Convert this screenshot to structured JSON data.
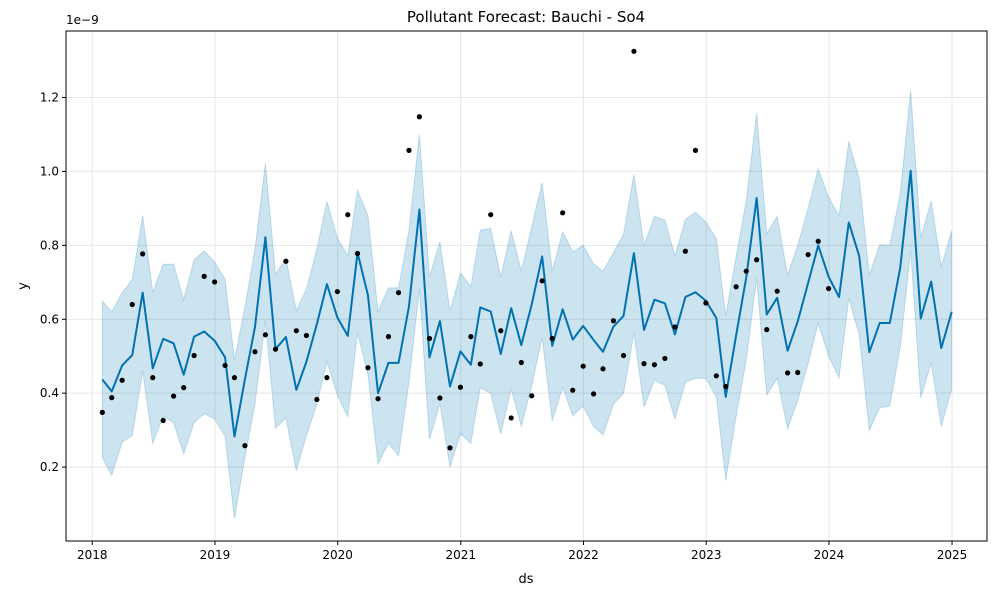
{
  "chart_data": {
    "type": "line",
    "title": "Pollutant Forecast: Bauchi - So4",
    "xlabel": "ds",
    "ylabel": "y",
    "y_scale_label": "1e−9",
    "x_ticks": [
      "2018",
      "2019",
      "2020",
      "2021",
      "2022",
      "2023",
      "2024",
      "2025"
    ],
    "y_ticks": [
      "0.2",
      "0.4",
      "0.6",
      "0.8",
      "1.0",
      "1.2"
    ],
    "xlim": [
      "2017-10-15",
      "2025-04-15"
    ],
    "ylim": [
      0.0,
      1.38
    ],
    "grid": true,
    "colors": {
      "forecast_line": "#0072B2",
      "interval_fill": "#0072B2",
      "observed": "#000000",
      "grid": "#e6e6e6"
    },
    "forecast": {
      "x": [
        "2018-01-31",
        "2018-02-28",
        "2018-03-31",
        "2018-04-30",
        "2018-05-31",
        "2018-06-30",
        "2018-07-31",
        "2018-08-31",
        "2018-09-30",
        "2018-10-31",
        "2018-11-30",
        "2018-12-31",
        "2019-01-31",
        "2019-02-28",
        "2019-03-31",
        "2019-04-30",
        "2019-05-31",
        "2019-06-30",
        "2019-07-31",
        "2019-08-31",
        "2019-09-30",
        "2019-10-31",
        "2019-11-30",
        "2019-12-31",
        "2020-01-31",
        "2020-02-29",
        "2020-03-31",
        "2020-04-30",
        "2020-05-31",
        "2020-06-30",
        "2020-07-31",
        "2020-08-31",
        "2020-09-30",
        "2020-10-31",
        "2020-11-30",
        "2020-12-31",
        "2021-01-31",
        "2021-02-28",
        "2021-03-31",
        "2021-04-30",
        "2021-05-31",
        "2021-06-30",
        "2021-07-31",
        "2021-08-31",
        "2021-09-30",
        "2021-10-31",
        "2021-11-30",
        "2021-12-31",
        "2022-01-31",
        "2022-02-28",
        "2022-03-31",
        "2022-04-30",
        "2022-05-31",
        "2022-06-30",
        "2022-07-31",
        "2022-08-31",
        "2022-09-30",
        "2022-10-31",
        "2022-11-30",
        "2022-12-31",
        "2023-01-31",
        "2023-02-28",
        "2023-03-31",
        "2023-04-30",
        "2023-05-31",
        "2023-06-30",
        "2023-07-31",
        "2023-08-31",
        "2023-09-30",
        "2023-10-31",
        "2023-11-30",
        "2023-12-31",
        "2024-01-31",
        "2024-02-29",
        "2024-03-31",
        "2024-04-30",
        "2024-05-31",
        "2024-06-30",
        "2024-07-31",
        "2024-08-31",
        "2024-09-30",
        "2024-10-31",
        "2024-11-30",
        "2024-12-31"
      ],
      "yhat": [
        0.437,
        0.405,
        0.475,
        0.503,
        0.672,
        0.467,
        0.547,
        0.535,
        0.45,
        0.553,
        0.567,
        0.542,
        0.497,
        0.283,
        0.437,
        0.579,
        0.822,
        0.519,
        0.552,
        0.409,
        0.485,
        0.587,
        0.695,
        0.605,
        0.555,
        0.78,
        0.665,
        0.4,
        0.482,
        0.482,
        0.635,
        0.897,
        0.497,
        0.595,
        0.418,
        0.513,
        0.477,
        0.632,
        0.621,
        0.506,
        0.63,
        0.53,
        0.64,
        0.77,
        0.528,
        0.627,
        0.545,
        0.582,
        0.544,
        0.512,
        0.58,
        0.609,
        0.779,
        0.571,
        0.653,
        0.643,
        0.559,
        0.66,
        0.673,
        0.65,
        0.603,
        0.39,
        0.557,
        0.713,
        0.928,
        0.613,
        0.658,
        0.515,
        0.594,
        0.698,
        0.8,
        0.715,
        0.66,
        0.862,
        0.771,
        0.511,
        0.59,
        0.59,
        0.74,
        1.002,
        0.602,
        0.702,
        0.522,
        0.62
      ],
      "yhat_upper": [
        0.65,
        0.62,
        0.672,
        0.707,
        0.88,
        0.673,
        0.749,
        0.749,
        0.653,
        0.761,
        0.785,
        0.755,
        0.708,
        0.49,
        0.632,
        0.79,
        1.022,
        0.722,
        0.765,
        0.624,
        0.682,
        0.79,
        0.919,
        0.82,
        0.772,
        0.949,
        0.88,
        0.621,
        0.685,
        0.685,
        0.84,
        1.101,
        0.715,
        0.81,
        0.622,
        0.726,
        0.689,
        0.841,
        0.846,
        0.715,
        0.84,
        0.73,
        0.85,
        0.97,
        0.73,
        0.836,
        0.782,
        0.8,
        0.75,
        0.73,
        0.78,
        0.83,
        0.992,
        0.8,
        0.878,
        0.869,
        0.771,
        0.87,
        0.89,
        0.863,
        0.818,
        0.609,
        0.77,
        0.92,
        1.158,
        0.832,
        0.878,
        0.72,
        0.8,
        0.9,
        1.007,
        0.93,
        0.88,
        1.082,
        0.98,
        0.72,
        0.802,
        0.8,
        0.94,
        1.219,
        0.82,
        0.92,
        0.742,
        0.84
      ],
      "yhat_lower": [
        0.226,
        0.177,
        0.268,
        0.285,
        0.46,
        0.264,
        0.337,
        0.32,
        0.235,
        0.32,
        0.345,
        0.33,
        0.284,
        0.06,
        0.226,
        0.37,
        0.597,
        0.305,
        0.333,
        0.19,
        0.285,
        0.37,
        0.485,
        0.395,
        0.336,
        0.563,
        0.45,
        0.208,
        0.265,
        0.23,
        0.43,
        0.683,
        0.275,
        0.372,
        0.2,
        0.29,
        0.264,
        0.415,
        0.399,
        0.29,
        0.412,
        0.31,
        0.42,
        0.55,
        0.325,
        0.415,
        0.34,
        0.365,
        0.31,
        0.287,
        0.37,
        0.399,
        0.563,
        0.362,
        0.435,
        0.421,
        0.33,
        0.43,
        0.44,
        0.44,
        0.39,
        0.165,
        0.337,
        0.49,
        0.71,
        0.395,
        0.441,
        0.303,
        0.38,
        0.48,
        0.589,
        0.5,
        0.441,
        0.657,
        0.557,
        0.299,
        0.361,
        0.365,
        0.525,
        0.786,
        0.387,
        0.481,
        0.31,
        0.411
      ]
    },
    "observed": {
      "x": [
        "2018-01-31",
        "2018-02-28",
        "2018-03-31",
        "2018-04-30",
        "2018-05-31",
        "2018-06-30",
        "2018-07-31",
        "2018-08-31",
        "2018-09-30",
        "2018-10-31",
        "2018-11-30",
        "2018-12-31",
        "2019-01-31",
        "2019-02-28",
        "2019-03-31",
        "2019-04-30",
        "2019-05-31",
        "2019-06-30",
        "2019-07-31",
        "2019-08-31",
        "2019-09-30",
        "2019-10-31",
        "2019-11-30",
        "2019-12-31",
        "2020-01-31",
        "2020-02-29",
        "2020-03-31",
        "2020-04-30",
        "2020-05-31",
        "2020-06-30",
        "2020-07-31",
        "2020-08-31",
        "2020-09-30",
        "2020-10-31",
        "2020-11-30",
        "2020-12-31",
        "2021-01-31",
        "2021-02-28",
        "2021-03-31",
        "2021-04-30",
        "2021-05-31",
        "2021-06-30",
        "2021-07-31",
        "2021-08-31",
        "2021-09-30",
        "2021-10-31",
        "2021-11-30",
        "2021-12-31",
        "2022-01-31",
        "2022-02-28",
        "2022-03-31",
        "2022-04-30",
        "2022-05-31",
        "2022-06-30",
        "2022-07-31",
        "2022-08-31",
        "2022-09-30",
        "2022-10-31",
        "2022-11-30",
        "2022-12-31",
        "2023-01-31",
        "2023-02-28",
        "2023-03-31",
        "2023-04-30",
        "2023-05-31",
        "2023-06-30",
        "2023-07-31",
        "2023-08-31",
        "2023-09-30",
        "2023-10-31",
        "2023-11-30",
        "2023-12-31"
      ],
      "y": [
        0.348,
        0.388,
        0.435,
        0.64,
        0.777,
        0.442,
        0.326,
        0.392,
        0.415,
        0.502,
        0.716,
        0.701,
        0.475,
        0.442,
        0.258,
        0.512,
        0.558,
        0.519,
        0.757,
        0.569,
        0.556,
        0.383,
        0.442,
        0.675,
        0.883,
        0.778,
        0.469,
        0.385,
        0.553,
        0.672,
        1.057,
        1.148,
        0.548,
        0.387,
        0.252,
        0.416,
        0.553,
        0.479,
        0.883,
        0.569,
        0.333,
        0.483,
        0.393,
        0.704,
        0.548,
        0.888,
        0.408,
        0.473,
        0.398,
        0.466,
        0.596,
        0.502,
        1.325,
        0.48,
        0.477,
        0.494,
        0.579,
        0.784,
        1.057,
        0.644,
        0.447,
        0.418,
        0.688,
        0.73,
        0.761,
        0.572,
        0.676,
        0.455,
        0.456,
        0.775,
        0.811,
        0.683
      ]
    }
  }
}
